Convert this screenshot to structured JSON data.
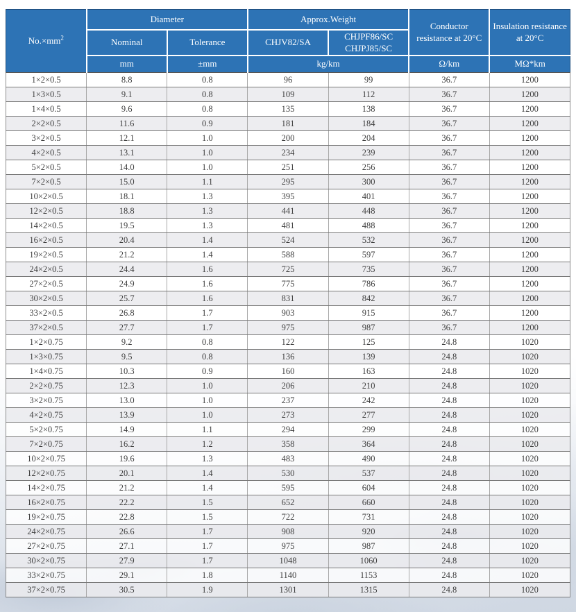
{
  "table": {
    "header": {
      "no_label": "No.×mm",
      "no_sup": "2",
      "group_diameter": "Diameter",
      "group_weight": "Approx.Weight",
      "nominal": "Nominal",
      "tolerance": "Tolerance",
      "weight_col1": "CHJV82/SA",
      "weight_col2_line1": "CHJPF86/SC",
      "weight_col2_line2": "CHJPJ85/SC",
      "conductor": "Conductor resistance at 20°C",
      "insulation": "Insulation resistance at 20°C"
    },
    "units": {
      "diameter_nominal": "mm",
      "diameter_tolerance": "±mm",
      "weight": "kg/km",
      "conductor": "Ω/km",
      "insulation": "MΩ*km"
    },
    "rows": [
      [
        "1×2×0.5",
        "8.8",
        "0.8",
        "96",
        "99",
        "36.7",
        "1200"
      ],
      [
        "1×3×0.5",
        "9.1",
        "0.8",
        "109",
        "112",
        "36.7",
        "1200"
      ],
      [
        "1×4×0.5",
        "9.6",
        "0.8",
        "135",
        "138",
        "36.7",
        "1200"
      ],
      [
        "2×2×0.5",
        "11.6",
        "0.9",
        "181",
        "184",
        "36.7",
        "1200"
      ],
      [
        "3×2×0.5",
        "12.1",
        "1.0",
        "200",
        "204",
        "36.7",
        "1200"
      ],
      [
        "4×2×0.5",
        "13.1",
        "1.0",
        "234",
        "239",
        "36.7",
        "1200"
      ],
      [
        "5×2×0.5",
        "14.0",
        "1.0",
        "251",
        "256",
        "36.7",
        "1200"
      ],
      [
        "7×2×0.5",
        "15.0",
        "1.1",
        "295",
        "300",
        "36.7",
        "1200"
      ],
      [
        "10×2×0.5",
        "18.1",
        "1.3",
        "395",
        "401",
        "36.7",
        "1200"
      ],
      [
        "12×2×0.5",
        "18.8",
        "1.3",
        "441",
        "448",
        "36.7",
        "1200"
      ],
      [
        "14×2×0.5",
        "19.5",
        "1.3",
        "481",
        "488",
        "36.7",
        "1200"
      ],
      [
        "16×2×0.5",
        "20.4",
        "1.4",
        "524",
        "532",
        "36.7",
        "1200"
      ],
      [
        "19×2×0.5",
        "21.2",
        "1.4",
        "588",
        "597",
        "36.7",
        "1200"
      ],
      [
        "24×2×0.5",
        "24.4",
        "1.6",
        "725",
        "735",
        "36.7",
        "1200"
      ],
      [
        "27×2×0.5",
        "24.9",
        "1.6",
        "775",
        "786",
        "36.7",
        "1200"
      ],
      [
        "30×2×0.5",
        "25.7",
        "1.6",
        "831",
        "842",
        "36.7",
        "1200"
      ],
      [
        "33×2×0.5",
        "26.8",
        "1.7",
        "903",
        "915",
        "36.7",
        "1200"
      ],
      [
        "37×2×0.5",
        "27.7",
        "1.7",
        "975",
        "987",
        "36.7",
        "1200"
      ],
      [
        "1×2×0.75",
        "9.2",
        "0.8",
        "122",
        "125",
        "24.8",
        "1020"
      ],
      [
        "1×3×0.75",
        "9.5",
        "0.8",
        "136",
        "139",
        "24.8",
        "1020"
      ],
      [
        "1×4×0.75",
        "10.3",
        "0.9",
        "160",
        "163",
        "24.8",
        "1020"
      ],
      [
        "2×2×0.75",
        "12.3",
        "1.0",
        "206",
        "210",
        "24.8",
        "1020"
      ],
      [
        "3×2×0.75",
        "13.0",
        "1.0",
        "237",
        "242",
        "24.8",
        "1020"
      ],
      [
        "4×2×0.75",
        "13.9",
        "1.0",
        "273",
        "277",
        "24.8",
        "1020"
      ],
      [
        "5×2×0.75",
        "14.9",
        "1.1",
        "294",
        "299",
        "24.8",
        "1020"
      ],
      [
        "7×2×0.75",
        "16.2",
        "1.2",
        "358",
        "364",
        "24.8",
        "1020"
      ],
      [
        "10×2×0.75",
        "19.6",
        "1.3",
        "483",
        "490",
        "24.8",
        "1020"
      ],
      [
        "12×2×0.75",
        "20.1",
        "1.4",
        "530",
        "537",
        "24.8",
        "1020"
      ],
      [
        "14×2×0.75",
        "21.2",
        "1.4",
        "595",
        "604",
        "24.8",
        "1020"
      ],
      [
        "16×2×0.75",
        "22.2",
        "1.5",
        "652",
        "660",
        "24.8",
        "1020"
      ],
      [
        "19×2×0.75",
        "22.8",
        "1.5",
        "722",
        "731",
        "24.8",
        "1020"
      ],
      [
        "24×2×0.75",
        "26.6",
        "1.7",
        "908",
        "920",
        "24.8",
        "1020"
      ],
      [
        "27×2×0.75",
        "27.1",
        "1.7",
        "975",
        "987",
        "24.8",
        "1020"
      ],
      [
        "30×2×0.75",
        "27.9",
        "1.7",
        "1048",
        "1060",
        "24.8",
        "1020"
      ],
      [
        "33×2×0.75",
        "29.1",
        "1.8",
        "1140",
        "1153",
        "24.8",
        "1020"
      ],
      [
        "37×2×0.75",
        "30.5",
        "1.9",
        "1301",
        "1315",
        "24.8",
        "1020"
      ]
    ],
    "colors": {
      "header_blue": "#2D73B5",
      "header_text": "#FFFFFF",
      "body_text": "#3F3F3F",
      "row_alt_gray": "#EAEBEE"
    }
  }
}
